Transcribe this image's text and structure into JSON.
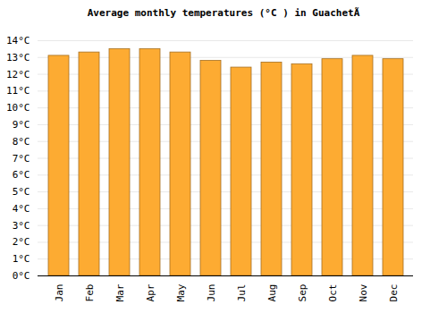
{
  "chart_data": {
    "type": "bar",
    "title": "Average monthly temperatures (°C ) in GuachetÃ",
    "categories": [
      "Jan",
      "Feb",
      "Mar",
      "Apr",
      "May",
      "Jun",
      "Jul",
      "Aug",
      "Sep",
      "Oct",
      "Nov",
      "Dec"
    ],
    "values": [
      13.1,
      13.3,
      13.5,
      13.5,
      13.3,
      12.8,
      12.4,
      12.7,
      12.6,
      12.9,
      13.1,
      12.9
    ],
    "color": "#fdab32",
    "ylim": [
      0,
      14
    ],
    "yticks": [
      {
        "value": 0,
        "label": "0°C"
      },
      {
        "value": 1,
        "label": "1°C"
      },
      {
        "value": 2,
        "label": "2°C"
      },
      {
        "value": 3,
        "label": "3°C"
      },
      {
        "value": 4,
        "label": "4°C"
      },
      {
        "value": 5,
        "label": "5°C"
      },
      {
        "value": 6,
        "label": "6°C"
      },
      {
        "value": 7,
        "label": "7°C"
      },
      {
        "value": 8,
        "label": "8°C"
      },
      {
        "value": 9,
        "label": "9°C"
      },
      {
        "value": 10,
        "label": "10°C"
      },
      {
        "value": 11,
        "label": "11°C"
      },
      {
        "value": 12,
        "label": "12°C"
      },
      {
        "value": 13,
        "label": "13°C"
      },
      {
        "value": 14,
        "label": "14°C"
      }
    ],
    "grid": true
  }
}
